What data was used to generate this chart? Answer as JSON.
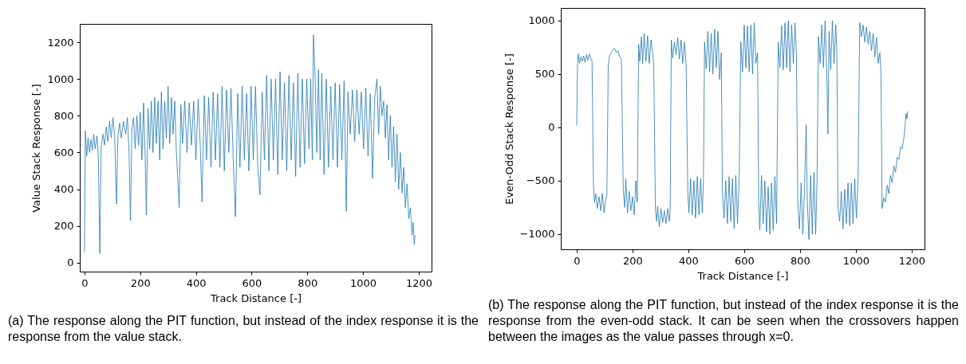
{
  "chart_data": [
    {
      "type": "line",
      "xlabel": "Track Distance [-]",
      "ylabel": "Value Stack Response [-]",
      "color": "#1f77b4",
      "xlim": [
        -17,
        1246
      ],
      "ylim": [
        -48,
        1300
      ],
      "xticks": [
        0,
        200,
        400,
        600,
        800,
        1000,
        1200
      ],
      "yticks": [
        0,
        200,
        400,
        600,
        800,
        1000,
        1200
      ],
      "annotations": [
        "(a) The response along the PIT function, but instead of the index response it is the response from the value stack."
      ],
      "x": [
        0,
        3,
        8,
        13,
        18,
        23,
        28,
        33,
        38,
        45,
        50,
        55,
        60,
        66,
        72,
        78,
        84,
        90,
        96,
        102,
        108,
        115,
        120,
        126,
        132,
        140,
        148,
        154,
        160,
        165,
        170,
        176,
        182,
        188,
        194,
        200,
        206,
        212,
        218,
        222,
        228,
        234,
        240,
        246,
        252,
        258,
        264,
        270,
        276,
        282,
        288,
        294,
        300,
        306,
        312,
        318,
        324,
        330,
        340,
        346,
        352,
        360,
        368,
        376,
        384,
        392,
        400,
        408,
        416,
        422,
        430,
        438,
        446,
        454,
        462,
        470,
        478,
        486,
        494,
        502,
        510,
        518,
        526,
        534,
        542,
        550,
        558,
        566,
        574,
        582,
        590,
        598,
        606,
        614,
        622,
        630,
        638,
        646,
        654,
        662,
        670,
        678,
        686,
        694,
        702,
        710,
        718,
        726,
        734,
        742,
        750,
        758,
        766,
        774,
        782,
        790,
        798,
        806,
        812,
        818,
        822,
        828,
        834,
        840,
        846,
        852,
        860,
        868,
        876,
        884,
        892,
        900,
        908,
        916,
        924,
        932,
        940,
        946,
        954,
        962,
        970,
        978,
        986,
        994,
        1002,
        1010,
        1018,
        1026,
        1034,
        1042,
        1050,
        1056,
        1062,
        1068,
        1074,
        1080,
        1086,
        1092,
        1098,
        1104,
        1110,
        1116,
        1122,
        1128,
        1134,
        1140,
        1146,
        1152,
        1158,
        1164,
        1170,
        1176,
        1180,
        1184,
        1187
      ],
      "values": [
        60,
        720,
        580,
        680,
        600,
        670,
        610,
        700,
        620,
        690,
        560,
        50,
        630,
        700,
        640,
        740,
        660,
        770,
        680,
        790,
        700,
        320,
        690,
        760,
        680,
        770,
        700,
        790,
        600,
        230,
        720,
        790,
        620,
        800,
        640,
        820,
        560,
        870,
        560,
        260,
        840,
        620,
        880,
        600,
        900,
        650,
        880,
        560,
        930,
        620,
        880,
        680,
        960,
        650,
        900,
        700,
        880,
        600,
        300,
        860,
        650,
        880,
        600,
        870,
        640,
        880,
        560,
        890,
        620,
        330,
        910,
        560,
        900,
        520,
        930,
        560,
        920,
        520,
        960,
        500,
        940,
        600,
        950,
        560,
        250,
        920,
        520,
        960,
        560,
        920,
        500,
        960,
        560,
        960,
        520,
        370,
        930,
        560,
        1020,
        500,
        1000,
        560,
        1000,
        480,
        1040,
        560,
        980,
        500,
        1020,
        560,
        980,
        470,
        1030,
        520,
        1000,
        540,
        1000,
        620,
        1000,
        560,
        1240,
        1000,
        600,
        1050,
        560,
        1030,
        480,
        1000,
        520,
        960,
        560,
        980,
        520,
        970,
        560,
        990,
        280,
        930,
        700,
        940,
        660,
        940,
        700,
        930,
        620,
        950,
        580,
        920,
        460,
        900,
        1000,
        700,
        960,
        800,
        880,
        680,
        860,
        560,
        800,
        520,
        740,
        440,
        700,
        400,
        600,
        380,
        520,
        300,
        430,
        240,
        300,
        150,
        220,
        100,
        150
      ]
    },
    {
      "type": "line",
      "xlabel": "Track Distance [-]",
      "ylabel": "Even-Odd Stack Response [-]",
      "color": "#1f77b4",
      "xlim": [
        -57,
        1246
      ],
      "ylim": [
        -1142,
        1119
      ],
      "xticks": [
        0,
        200,
        400,
        600,
        800,
        1000,
        1200
      ],
      "yticks": [
        {
          "value": -1000,
          "label": "−1000"
        },
        {
          "value": -500,
          "label": "−500"
        },
        0,
        500,
        1000
      ],
      "annotations": [
        "(b) The response along the PIT function, but instead of the index response it is the response from the even-odd stack. It can be seen when the crossovers happen between the images as the value passes through x=0."
      ],
      "x": [
        0,
        3,
        6,
        10,
        15,
        20,
        25,
        30,
        35,
        40,
        45,
        50,
        55,
        60,
        64,
        68,
        74,
        80,
        86,
        92,
        98,
        104,
        108,
        113,
        118,
        124,
        130,
        136,
        142,
        148,
        154,
        160,
        167,
        172,
        176,
        182,
        188,
        194,
        200,
        206,
        212,
        217,
        222,
        226,
        232,
        236,
        242,
        248,
        254,
        260,
        266,
        272,
        276,
        282,
        286,
        290,
        296,
        302,
        308,
        314,
        320,
        326,
        332,
        335,
        339,
        344,
        350,
        356,
        362,
        368,
        374,
        380,
        386,
        392,
        398,
        402,
        408,
        414,
        420,
        426,
        432,
        438,
        444,
        450,
        454,
        458,
        464,
        470,
        476,
        482,
        488,
        494,
        500,
        506,
        512,
        518,
        522,
        528,
        534,
        540,
        546,
        552,
        558,
        564,
        570,
        576,
        582,
        588,
        594,
        600,
        606,
        612,
        618,
        624,
        630,
        636,
        642,
        648,
        652,
        656,
        662,
        668,
        674,
        680,
        686,
        692,
        698,
        704,
        710,
        716,
        722,
        728,
        734,
        740,
        746,
        752,
        758,
        764,
        770,
        776,
        782,
        787,
        792,
        798,
        804,
        810,
        816,
        822,
        826,
        832,
        838,
        844,
        850,
        856,
        861,
        866,
        872,
        878,
        884,
        890,
        896,
        900,
        904,
        910,
        916,
        922,
        928,
        932,
        936,
        942,
        948,
        954,
        960,
        966,
        972,
        978,
        984,
        990,
        996,
        1002,
        1008,
        1014,
        1020,
        1026,
        1032,
        1038,
        1044,
        1050,
        1056,
        1062,
        1068,
        1074,
        1080,
        1086,
        1090,
        1094,
        1100,
        1106,
        1112,
        1118,
        1124,
        1130,
        1136,
        1142,
        1148,
        1154,
        1160,
        1166,
        1172,
        1176,
        1180,
        1183,
        1186
      ],
      "values": [
        20,
        600,
        690,
        600,
        660,
        620,
        670,
        610,
        680,
        630,
        690,
        650,
        620,
        -550,
        -700,
        -620,
        -760,
        -650,
        -780,
        -620,
        -800,
        -680,
        -640,
        580,
        680,
        700,
        730,
        740,
        700,
        720,
        660,
        640,
        -600,
        -750,
        -480,
        -800,
        -600,
        -780,
        -650,
        -820,
        -500,
        -700,
        780,
        620,
        850,
        600,
        880,
        620,
        860,
        600,
        820,
        700,
        590,
        -760,
        -880,
        -740,
        -930,
        -760,
        -890,
        -780,
        -900,
        -760,
        -880,
        -740,
        820,
        650,
        800,
        680,
        840,
        640,
        820,
        600,
        800,
        590,
        -600,
        -800,
        -480,
        -820,
        -500,
        -850,
        -460,
        -820,
        -480,
        -800,
        -500,
        800,
        550,
        900,
        520,
        880,
        500,
        920,
        560,
        900,
        450,
        700,
        -600,
        -850,
        -500,
        -900,
        -460,
        -880,
        -480,
        -950,
        -450,
        -900,
        -500,
        800,
        520,
        960,
        560,
        950,
        520,
        960,
        500,
        980,
        600,
        700,
        -700,
        -960,
        -450,
        -900,
        -500,
        -980,
        -560,
        -1000,
        -520,
        -960,
        -460,
        -900,
        800,
        560,
        950,
        540,
        980,
        560,
        1000,
        520,
        960,
        600,
        980,
        700,
        -700,
        -950,
        -520,
        -1000,
        -580,
        25,
        -700,
        -1050,
        -450,
        -1000,
        -420,
        -1000,
        -500,
        850,
        600,
        960,
        560,
        1000,
        500,
        -60,
        900,
        540,
        1000,
        600,
        960,
        700,
        -750,
        -880,
        -600,
        -950,
        -580,
        -900,
        -520,
        -920,
        -520,
        -900,
        -480,
        -850,
        -480,
        980,
        850,
        960,
        800,
        940,
        780,
        900,
        720,
        880,
        660,
        840,
        600,
        700,
        500,
        -760,
        -660,
        -700,
        -540,
        -620,
        -450,
        -520,
        -360,
        -420,
        -280,
        -300,
        -180,
        -200,
        -100,
        0,
        130,
        80,
        150
      ]
    }
  ]
}
